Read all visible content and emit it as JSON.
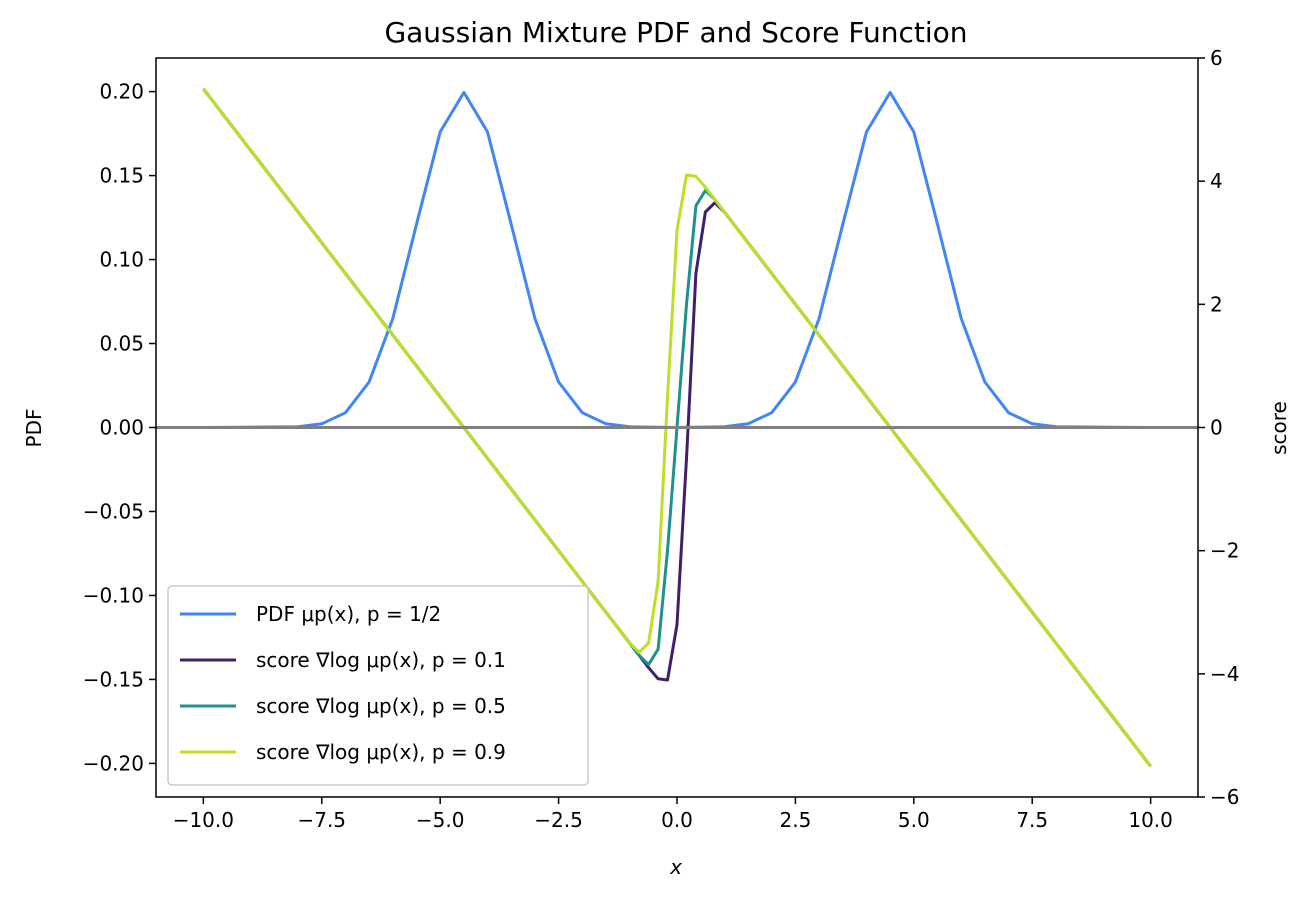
{
  "chart_data": {
    "type": "line",
    "title": "Gaussian Mixture PDF and Score Function",
    "xlabel": "x",
    "ylabel_left": "PDF",
    "ylabel_right": "score",
    "xlim": [
      -11.0,
      11.0
    ],
    "ylim_left": [
      -0.22,
      0.22
    ],
    "ylim_right": [
      -6.0,
      6.0
    ],
    "x_ticks": [
      -10.0,
      -7.5,
      -5.0,
      -2.5,
      0.0,
      2.5,
      5.0,
      7.5,
      10.0
    ],
    "x_tick_labels": [
      "−10.0",
      "−7.5",
      "−5.0",
      "−2.5",
      "0.0",
      "2.5",
      "5.0",
      "7.5",
      "10.0"
    ],
    "y_left_ticks": [
      -0.2,
      -0.15,
      -0.1,
      -0.05,
      0.0,
      0.05,
      0.1,
      0.15,
      0.2
    ],
    "y_left_tick_labels": [
      "−0.20",
      "−0.15",
      "−0.10",
      "−0.05",
      "0.00",
      "0.05",
      "0.10",
      "0.15",
      "0.20"
    ],
    "y_right_ticks": [
      -6,
      -4,
      -2,
      0,
      2,
      4,
      6
    ],
    "y_right_tick_labels": [
      "−6",
      "−4",
      "−2",
      "0",
      "2",
      "4",
      "6"
    ],
    "hline": {
      "y": 0,
      "color": "#808080"
    },
    "legend": {
      "placement": "lower-left"
    },
    "series": [
      {
        "name": "PDF μp(x), p = 1/2",
        "axis": "left",
        "color": "#4285f4",
        "x": [
          -10,
          -8,
          -7.5,
          -7,
          -6.5,
          -6,
          -5.5,
          -5,
          -4.5,
          -4,
          -3.5,
          -3,
          -2.5,
          -2,
          -1.5,
          -1,
          0,
          1,
          1.5,
          2,
          2.5,
          3,
          3.5,
          4,
          4.5,
          5,
          5.5,
          6,
          6.5,
          7,
          7.5,
          8,
          10
        ],
        "y": [
          0,
          0.0004,
          0.0022,
          0.0088,
          0.0271,
          0.0649,
          0.121,
          0.176,
          0.1995,
          0.176,
          0.121,
          0.0649,
          0.0271,
          0.0088,
          0.0022,
          0.0004,
          0.0,
          0.0004,
          0.0022,
          0.0088,
          0.0271,
          0.0649,
          0.121,
          0.176,
          0.1995,
          0.176,
          0.121,
          0.0649,
          0.0271,
          0.0088,
          0.0022,
          0.0004,
          0
        ]
      },
      {
        "name": "score ∇log μp(x), p = 0.1",
        "axis": "right",
        "color": "#3f1f6b",
        "x": [
          -10,
          -8,
          -6,
          -4,
          -2,
          -1,
          -0.6,
          -0.4,
          -0.2,
          0,
          0.2,
          0.4,
          0.6,
          0.8,
          1,
          2,
          4,
          6,
          8,
          10
        ],
        "y": [
          5.5,
          3.5,
          1.5,
          -0.5,
          -2.5,
          -3.5,
          -3.9,
          -4.08,
          -4.1,
          -3.2,
          -0.5,
          2.5,
          3.5,
          3.65,
          3.5,
          2.5,
          0.5,
          -1.5,
          -3.5,
          -5.5
        ]
      },
      {
        "name": "score ∇log μp(x), p = 0.5",
        "axis": "right",
        "color": "#21918c",
        "x": [
          -10,
          -8,
          -6,
          -4,
          -2,
          -1,
          -0.8,
          -0.6,
          -0.4,
          -0.2,
          0,
          0.2,
          0.4,
          0.6,
          0.8,
          1,
          2,
          4,
          6,
          8,
          10
        ],
        "y": [
          5.5,
          3.5,
          1.5,
          -0.5,
          -2.5,
          -3.5,
          -3.7,
          -3.85,
          -3.6,
          -2.0,
          0.0,
          2.0,
          3.6,
          3.85,
          3.7,
          3.5,
          2.5,
          0.5,
          -1.5,
          -3.5,
          -5.5
        ]
      },
      {
        "name": "score ∇log μp(x), p = 0.9",
        "axis": "right",
        "color": "#bddf26",
        "x": [
          -10,
          -8,
          -6,
          -4,
          -2,
          -1,
          -0.8,
          -0.6,
          -0.4,
          -0.2,
          0,
          0.2,
          0.4,
          0.6,
          0.8,
          1,
          2,
          4,
          6,
          8,
          10
        ],
        "y": [
          5.5,
          3.5,
          1.5,
          -0.5,
          -2.5,
          -3.5,
          -3.65,
          -3.5,
          -2.5,
          0.5,
          3.2,
          4.1,
          4.08,
          3.9,
          3.7,
          3.5,
          2.5,
          0.5,
          -1.5,
          -3.5,
          -5.5
        ]
      }
    ]
  }
}
